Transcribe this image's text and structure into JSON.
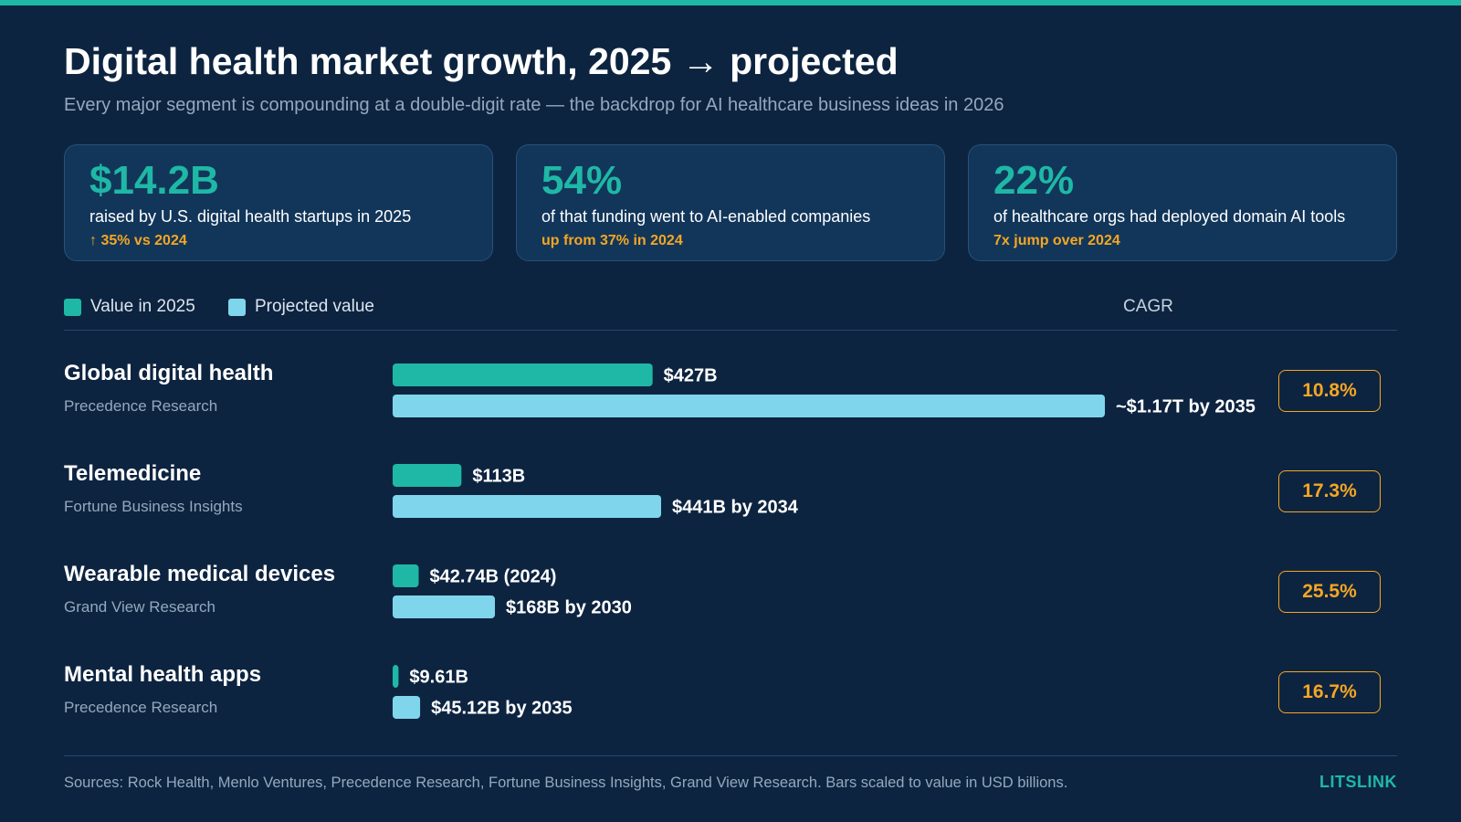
{
  "header": {
    "title": "Digital health market growth, 2025 → projected",
    "subtitle": "Every major segment is compounding at a double-digit rate — the backdrop for AI healthcare business ideas in 2026"
  },
  "stats": [
    {
      "value": "$14.2B",
      "description": "raised by U.S. digital health startups in 2025",
      "note": "↑ 35% vs 2024"
    },
    {
      "value": "54%",
      "description": "of that funding went to AI-enabled companies",
      "note": "up from 37% in 2024"
    },
    {
      "value": "22%",
      "description": "of healthcare orgs had deployed domain AI tools",
      "note": "7x jump over 2024"
    }
  ],
  "legend": {
    "current": "Value in 2025",
    "projected": "Projected value",
    "cagr_header": "CAGR"
  },
  "colors": {
    "accent": "#1fb8a6",
    "projected": "#7fd6ec",
    "highlight": "#f5a623",
    "background": "#0d2440",
    "card": "#12365a"
  },
  "chart_data": {
    "type": "bar",
    "orientation": "horizontal",
    "units": "USD billions",
    "categories": [
      "Global digital health",
      "Telemedicine",
      "Wearable medical devices",
      "Mental health apps"
    ],
    "series": [
      {
        "name": "Value in 2025",
        "values": [
          427,
          113,
          42.74,
          9.61
        ]
      },
      {
        "name": "Projected value",
        "values": [
          1170,
          441,
          168,
          45.12
        ]
      }
    ],
    "rows": [
      {
        "name": "Global digital health",
        "source": "Precedence Research",
        "current": 427,
        "current_label": "$427B",
        "projected": 1170,
        "projected_label": "~$1.17T by 2035",
        "cagr": "10.8%"
      },
      {
        "name": "Telemedicine",
        "source": "Fortune Business Insights",
        "current": 113,
        "current_label": "$113B",
        "projected": 441,
        "projected_label": "$441B by 2034",
        "cagr": "17.3%"
      },
      {
        "name": "Wearable medical devices",
        "source": "Grand View Research",
        "current": 42.74,
        "current_label": "$42.74B (2024)",
        "projected": 168,
        "projected_label": "$168B by 2030",
        "cagr": "25.5%"
      },
      {
        "name": "Mental health apps",
        "source": "Precedence Research",
        "current": 9.61,
        "current_label": "$9.61B",
        "projected": 45.12,
        "projected_label": "$45.12B by 2035",
        "cagr": "16.7%"
      }
    ]
  },
  "footer": {
    "sources": "Sources: Rock Health, Menlo Ventures, Precedence Research, Fortune Business Insights, Grand View Research. Bars scaled to value in USD billions.",
    "brand": "LITSLINK"
  }
}
